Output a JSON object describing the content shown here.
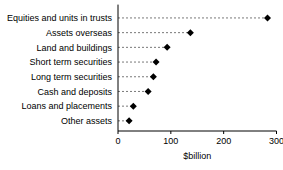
{
  "chart_data": {
    "type": "dot",
    "orientation": "horizontal",
    "categories": [
      "Equities and units in trusts",
      "Assets overseas",
      "Land and buildings",
      "Short term securities",
      "Long term securities",
      "Cash and deposits",
      "Loans and placements",
      "Other assets"
    ],
    "values": [
      283,
      137,
      93,
      72,
      67,
      57,
      29,
      21
    ],
    "x_label": "$billion",
    "xlim": [
      0,
      300
    ],
    "xticks": [
      0,
      100,
      200,
      300
    ],
    "color": "#000000",
    "marker": "diamond",
    "line_style": "dashed"
  }
}
